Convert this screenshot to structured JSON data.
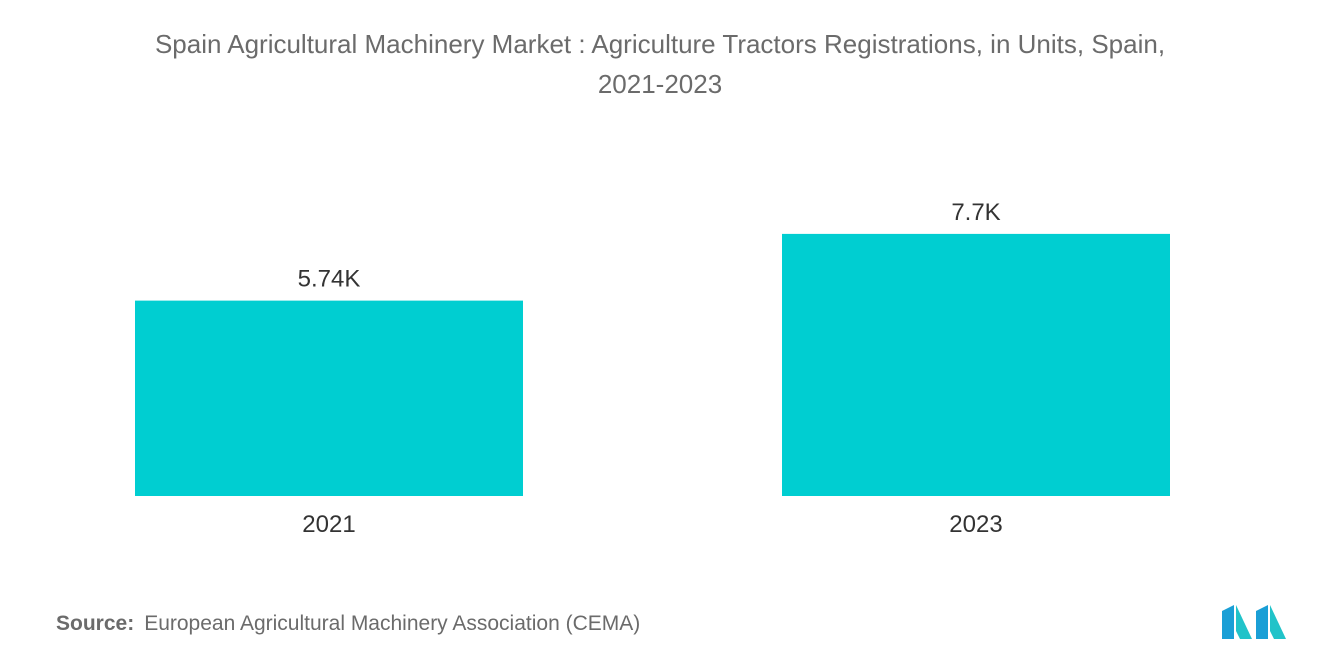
{
  "chart_data": {
    "type": "bar",
    "title_line1": "Spain Agricultural Machinery Market : Agriculture Tractors Registrations, in Units, Spain,",
    "title_line2": "2021-2023",
    "categories": [
      "2021",
      "2023"
    ],
    "values": [
      5740,
      7700
    ],
    "value_labels": [
      "5.74K",
      "7.7K"
    ],
    "ylim": [
      0,
      10000
    ],
    "grid": false,
    "legend": "none",
    "bar_color": "#00ced1"
  },
  "source": {
    "label": "Source:",
    "text": "European Agricultural Machinery Association (CEMA)"
  },
  "logo": {
    "icon": "mordor-intelligence-logo-icon",
    "colors": [
      "#1a9fd6",
      "#21c3c9"
    ]
  }
}
